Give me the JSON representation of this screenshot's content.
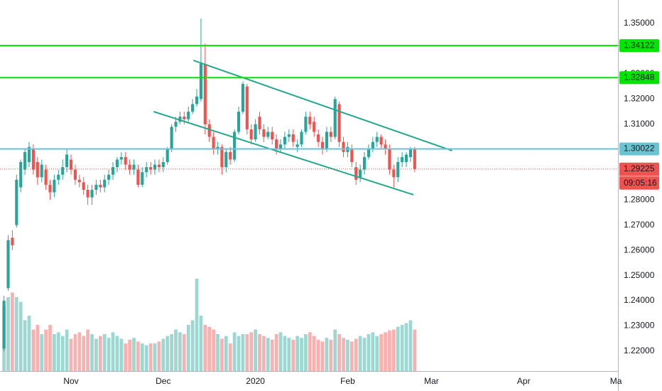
{
  "chart_data": {
    "type": "candlestick",
    "categories": [
      null,
      null,
      null,
      null,
      null,
      null,
      null,
      null,
      null,
      null,
      null,
      null,
      null,
      null,
      null,
      null,
      "Nov",
      null,
      null,
      null,
      null,
      null,
      null,
      null,
      null,
      null,
      null,
      null,
      null,
      null,
      null,
      null,
      null,
      null,
      null,
      null,
      null,
      null,
      "Dec",
      null,
      null,
      null,
      null,
      null,
      null,
      null,
      null,
      null,
      null,
      null,
      null,
      null,
      null,
      null,
      null,
      null,
      null,
      null,
      null,
      null,
      "2020",
      null,
      null,
      null,
      null,
      null,
      null,
      null,
      null,
      null,
      null,
      null,
      null,
      null,
      null,
      null,
      null,
      null,
      null,
      null,
      null,
      null,
      "Feb",
      null,
      null,
      null,
      null,
      null,
      null,
      null,
      null,
      null,
      null,
      null,
      null,
      null,
      null,
      null,
      null,
      null,
      null,
      null,
      "Mar",
      null,
      null,
      null,
      null,
      null,
      null,
      null,
      null,
      null,
      null,
      null,
      null,
      null,
      null,
      null,
      null,
      null,
      null,
      null,
      null,
      null,
      "Apr",
      null,
      null,
      null,
      null,
      null,
      null,
      null,
      null,
      null,
      null,
      null,
      null,
      null,
      null,
      null,
      null,
      null,
      null,
      null,
      null,
      null,
      "Ma"
    ],
    "open": [
      1.221,
      1.245,
      1.265,
      1.27,
      1.285,
      1.292,
      1.295,
      1.3,
      1.295,
      1.289,
      1.292,
      1.286,
      1.283,
      1.288,
      1.29,
      1.293,
      1.296,
      1.292,
      1.288,
      1.287,
      1.284,
      1.281,
      1.284,
      1.286,
      1.285,
      1.288,
      1.29,
      1.293,
      1.296,
      1.297,
      1.294,
      1.292,
      1.292,
      1.286,
      1.291,
      1.293,
      1.292,
      1.294,
      1.293,
      1.295,
      1.3,
      1.309,
      1.311,
      1.313,
      1.312,
      1.315,
      1.318,
      1.32,
      1.334,
      1.31,
      1.305,
      1.3,
      1.301,
      1.293,
      1.299,
      1.296,
      1.307,
      1.315,
      1.325,
      1.308,
      1.304,
      1.313,
      1.308,
      1.305,
      1.307,
      1.304,
      1.3,
      1.302,
      1.305,
      1.306,
      1.301,
      1.302,
      1.307,
      1.313,
      1.311,
      1.306,
      1.303,
      1.3,
      1.307,
      1.305,
      1.318,
      1.303,
      1.299,
      1.3,
      1.293,
      1.289,
      1.292,
      1.297,
      1.3,
      1.303,
      1.305,
      1.302,
      1.3,
      1.292,
      1.289,
      1.295,
      1.295,
      1.297,
      1.3,
      null,
      null,
      null,
      null,
      null,
      null,
      null,
      null,
      null,
      null,
      null,
      null,
      null,
      null,
      null,
      null,
      null,
      null,
      null,
      null,
      null,
      null,
      null,
      null,
      null,
      null,
      null,
      null,
      null,
      null,
      null,
      null,
      null,
      null,
      null,
      null,
      null,
      null,
      null,
      null,
      null,
      null,
      null,
      null,
      null,
      null,
      null,
      null
    ],
    "high": [
      1.242,
      1.266,
      1.268,
      1.29,
      1.296,
      1.3,
      1.303,
      1.302,
      1.297,
      1.296,
      1.294,
      1.288,
      1.29,
      1.292,
      1.296,
      1.3,
      1.298,
      1.294,
      1.29,
      1.289,
      1.286,
      1.286,
      1.288,
      1.288,
      1.29,
      1.292,
      1.295,
      1.297,
      1.299,
      1.299,
      1.296,
      1.296,
      1.294,
      1.293,
      1.295,
      1.295,
      1.296,
      1.296,
      1.297,
      1.301,
      1.31,
      1.313,
      1.315,
      1.315,
      1.317,
      1.32,
      1.324,
      1.352,
      1.342,
      1.312,
      1.307,
      1.303,
      1.302,
      1.3,
      1.301,
      1.308,
      1.317,
      1.327,
      1.326,
      1.31,
      1.312,
      1.315,
      1.31,
      1.309,
      1.309,
      1.306,
      1.304,
      1.307,
      1.308,
      1.308,
      1.304,
      1.308,
      1.315,
      1.315,
      1.313,
      1.308,
      1.305,
      1.309,
      1.309,
      1.321,
      1.319,
      1.305,
      1.303,
      1.302,
      1.295,
      1.294,
      1.299,
      1.302,
      1.305,
      1.307,
      1.306,
      1.304,
      1.302,
      1.294,
      1.297,
      1.299,
      1.299,
      1.301,
      1.301,
      null,
      null,
      null,
      null,
      null,
      null,
      null,
      null,
      null,
      null,
      null,
      null,
      null,
      null,
      null,
      null,
      null,
      null,
      null,
      null,
      null,
      null,
      null,
      null,
      null,
      null,
      null,
      null,
      null,
      null,
      null,
      null,
      null,
      null,
      null,
      null,
      null,
      null,
      null,
      null,
      null,
      null,
      null,
      null,
      null,
      null,
      null,
      null
    ],
    "low": [
      1.22,
      1.244,
      1.26,
      1.269,
      1.283,
      1.29,
      1.293,
      1.29,
      1.286,
      1.287,
      1.284,
      1.28,
      1.281,
      1.286,
      1.288,
      1.291,
      1.29,
      1.286,
      1.285,
      1.282,
      1.278,
      1.278,
      1.282,
      1.283,
      1.283,
      1.286,
      1.288,
      1.291,
      1.294,
      1.292,
      1.29,
      1.29,
      1.285,
      1.285,
      1.289,
      1.29,
      1.29,
      1.291,
      1.291,
      1.294,
      1.299,
      1.307,
      1.31,
      1.31,
      1.311,
      1.314,
      1.317,
      1.319,
      1.306,
      1.303,
      1.298,
      1.298,
      1.29,
      1.291,
      1.294,
      1.295,
      1.306,
      1.314,
      1.306,
      1.302,
      1.303,
      1.306,
      1.303,
      1.304,
      1.302,
      1.298,
      1.299,
      1.3,
      1.303,
      1.301,
      1.299,
      1.301,
      1.306,
      1.308,
      1.305,
      1.301,
      1.298,
      1.299,
      1.303,
      1.304,
      1.301,
      1.297,
      1.297,
      1.293,
      1.286,
      1.287,
      1.29,
      1.296,
      1.299,
      1.301,
      1.3,
      1.298,
      1.29,
      1.285,
      1.287,
      1.293,
      1.293,
      1.295,
      1.291,
      null,
      null,
      null,
      null,
      null,
      null,
      null,
      null,
      null,
      null,
      null,
      null,
      null,
      null,
      null,
      null,
      null,
      null,
      null,
      null,
      null,
      null,
      null,
      null,
      null,
      null,
      null,
      null,
      null,
      null,
      null,
      null,
      null,
      null,
      null,
      null,
      null,
      null,
      null,
      null,
      null,
      null,
      null,
      null,
      null,
      null,
      null,
      null
    ],
    "close": [
      1.24,
      1.264,
      1.262,
      1.288,
      1.295,
      1.299,
      1.301,
      1.292,
      1.289,
      1.294,
      1.286,
      1.283,
      1.288,
      1.29,
      1.293,
      1.298,
      1.292,
      1.288,
      1.287,
      1.284,
      1.281,
      1.284,
      1.286,
      1.285,
      1.288,
      1.29,
      1.293,
      1.296,
      1.297,
      1.294,
      1.292,
      1.294,
      1.286,
      1.291,
      1.293,
      1.292,
      1.294,
      1.293,
      1.295,
      1.3,
      1.309,
      1.311,
      1.313,
      1.312,
      1.315,
      1.318,
      1.321,
      1.334,
      1.31,
      1.305,
      1.3,
      1.301,
      1.293,
      1.299,
      1.296,
      1.307,
      1.315,
      1.326,
      1.308,
      1.304,
      1.31,
      1.308,
      1.305,
      1.307,
      1.304,
      1.3,
      1.302,
      1.305,
      1.306,
      1.303,
      1.302,
      1.307,
      1.313,
      1.31,
      1.307,
      1.303,
      1.3,
      1.307,
      1.305,
      1.32,
      1.303,
      1.299,
      1.301,
      1.295,
      1.288,
      1.292,
      1.297,
      1.3,
      1.303,
      1.305,
      1.302,
      1.3,
      1.292,
      1.289,
      1.295,
      1.297,
      1.298,
      1.3,
      1.29225,
      null,
      null,
      null,
      null,
      null,
      null,
      null,
      null,
      null,
      null,
      null,
      null,
      null,
      null,
      null,
      null,
      null,
      null,
      null,
      null,
      null,
      null,
      null,
      null,
      null,
      null,
      null,
      null,
      null,
      null,
      null,
      null,
      null,
      null,
      null,
      null,
      null,
      null,
      null,
      null,
      null,
      null,
      null,
      null,
      null,
      null,
      null,
      null
    ],
    "volume": [
      70,
      80,
      85,
      80,
      75,
      55,
      60,
      45,
      50,
      40,
      45,
      50,
      40,
      42,
      38,
      45,
      35,
      40,
      42,
      38,
      45,
      40,
      35,
      38,
      40,
      36,
      42,
      38,
      35,
      30,
      34,
      36,
      32,
      30,
      28,
      30,
      30,
      32,
      35,
      38,
      40,
      45,
      42,
      40,
      50,
      55,
      100,
      60,
      50,
      48,
      45,
      40,
      35,
      38,
      30,
      42,
      38,
      40,
      40,
      42,
      45,
      40,
      38,
      36,
      34,
      40,
      42,
      38,
      36,
      34,
      38,
      36,
      40,
      42,
      38,
      34,
      32,
      36,
      34,
      45,
      40,
      36,
      34,
      32,
      35,
      38,
      36,
      40,
      42,
      38,
      40,
      42,
      44,
      45,
      48,
      50,
      52,
      55,
      45,
      null,
      null,
      null,
      null,
      null,
      null,
      null,
      null,
      null,
      null,
      null,
      null,
      null,
      null,
      null,
      null,
      null,
      null,
      null,
      null,
      null,
      null,
      null,
      null,
      null,
      null,
      null,
      null,
      null,
      null,
      null,
      null,
      null,
      null,
      null,
      null,
      null,
      null,
      null,
      null,
      null,
      null,
      null,
      null,
      null,
      null,
      null,
      null
    ],
    "up_color": "#26a69a",
    "down_color": "#ef5350",
    "ylim": [
      1.2121,
      1.3593
    ],
    "yticks": [
      {
        "value": 1.22,
        "label": "1.22000"
      },
      {
        "value": 1.23,
        "label": "1.23000"
      },
      {
        "value": 1.24,
        "label": "1.24000"
      },
      {
        "value": 1.25,
        "label": "1.25000"
      },
      {
        "value": 1.26,
        "label": "1.26000"
      },
      {
        "value": 1.27,
        "label": "1.27000"
      },
      {
        "value": 1.28,
        "label": "1.28000"
      },
      {
        "value": 1.29,
        "label": "1.29000"
      },
      {
        "value": 1.3,
        "label": "1.30000"
      },
      {
        "value": 1.31,
        "label": "1.31000"
      },
      {
        "value": 1.32,
        "label": "1.32000"
      },
      {
        "value": 1.33,
        "label": "1.33000"
      },
      {
        "value": 1.34,
        "label": "1.34000"
      },
      {
        "value": 1.35,
        "label": "1.35000"
      }
    ],
    "grid": false,
    "price_lines": [
      {
        "value": 1.34122,
        "color": "#00e600"
      },
      {
        "value": 1.32848,
        "color": "#00e600"
      },
      {
        "value": 1.30022,
        "color": "#6cc3d0"
      }
    ],
    "last_price": {
      "value": 1.29225,
      "color": "#ef5350",
      "countdown": "09:05:16"
    },
    "channels": [
      {
        "color": "#22a88a",
        "points": [
          {
            "x": 45.2,
            "y": 1.33534
          },
          {
            "x": 106.9,
            "y": 1.29952
          }
        ]
      },
      {
        "color": "#22a88a",
        "points": [
          {
            "x": 35.7,
            "y": 1.31503
          },
          {
            "x": 97.7,
            "y": 1.28204
          }
        ]
      }
    ]
  }
}
